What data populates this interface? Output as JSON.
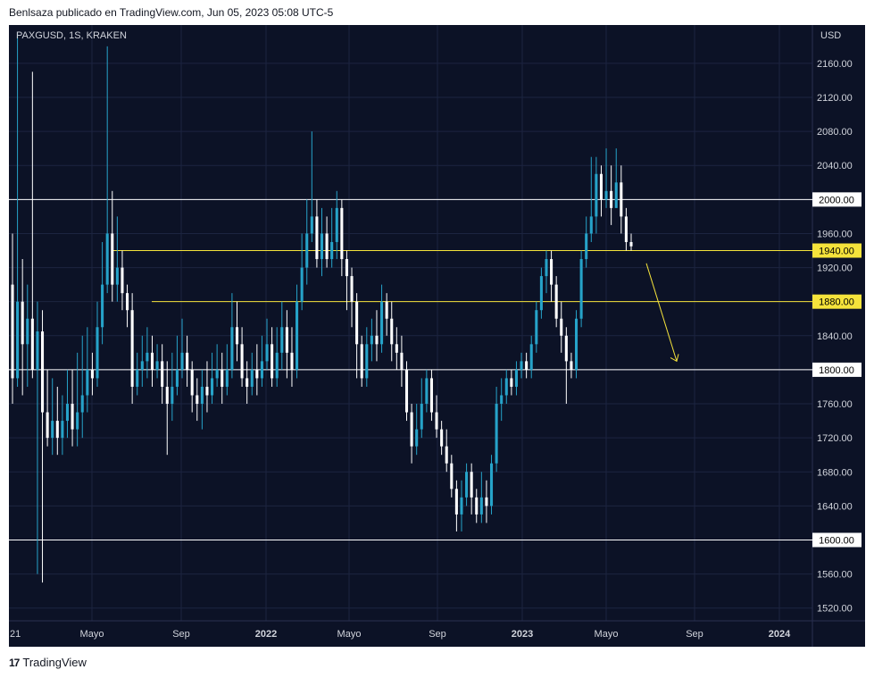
{
  "header": {
    "publisher_line": "Benlsaza publicado en TradingView.com, Jun 05, 2023 05:08 UTC-5"
  },
  "footer": {
    "brand": "TradingView",
    "logo_glyph": "17"
  },
  "chart_data": {
    "type": "candlestick",
    "symbol_label": "PAXGUSD, 1S, KRAKEN",
    "currency": "USD",
    "y_ticks": [
      1520,
      1560,
      1600,
      1640,
      1680,
      1720,
      1760,
      1800,
      1840,
      1880,
      1920,
      1960,
      2000,
      2040,
      2080,
      2120,
      2160
    ],
    "x_labels": [
      "21",
      "Mayo",
      "Sep",
      "2022",
      "Mayo",
      "Sep",
      "2023",
      "Mayo",
      "Sep",
      "2024"
    ],
    "ylim": [
      1505,
      2205
    ],
    "grid": true,
    "colors": {
      "background": "#0c1226",
      "up": "#26a3c9",
      "down": "#ffffff",
      "grid": "#1c2440",
      "text": "#d1d4dc",
      "yellow": "#f5e33b"
    },
    "levels": [
      {
        "price": 2000,
        "label": "2000.00",
        "color": "white"
      },
      {
        "price": 1940,
        "label": "1940.00",
        "color": "yellow"
      },
      {
        "price": 1880,
        "label": "1880.00",
        "color": "yellow"
      },
      {
        "price": 1800,
        "label": "1800.00",
        "color": "white"
      },
      {
        "price": 1600,
        "label": "1600.00",
        "color": "white"
      }
    ],
    "annotation": {
      "type": "arrow",
      "color": "yellow",
      "from_price": 1925,
      "to_price": 1810,
      "direction": "down"
    },
    "candles": [
      [
        1900,
        1790,
        1960,
        1760
      ],
      [
        1790,
        1880,
        2195,
        1780
      ],
      [
        1880,
        1830,
        1930,
        1770
      ],
      [
        1830,
        1860,
        1900,
        1780
      ],
      [
        1860,
        1800,
        2150,
        1790
      ],
      [
        1800,
        1845,
        1880,
        1560
      ],
      [
        1845,
        1750,
        1870,
        1550
      ],
      [
        1750,
        1720,
        1800,
        1710
      ],
      [
        1720,
        1740,
        1790,
        1700
      ],
      [
        1740,
        1720,
        1780,
        1700
      ],
      [
        1720,
        1740,
        1770,
        1700
      ],
      [
        1740,
        1760,
        1800,
        1720
      ],
      [
        1760,
        1730,
        1800,
        1710
      ],
      [
        1730,
        1750,
        1820,
        1710
      ],
      [
        1750,
        1770,
        1840,
        1720
      ],
      [
        1770,
        1800,
        1850,
        1750
      ],
      [
        1800,
        1790,
        1820,
        1770
      ],
      [
        1790,
        1850,
        1880,
        1780
      ],
      [
        1850,
        1900,
        1950,
        1830
      ],
      [
        1900,
        1960,
        2180,
        1890
      ],
      [
        1960,
        1900,
        2010,
        1880
      ],
      [
        1900,
        1920,
        1980,
        1880
      ],
      [
        1920,
        1890,
        1940,
        1870
      ],
      [
        1890,
        1870,
        1900,
        1850
      ],
      [
        1870,
        1780,
        1890,
        1760
      ],
      [
        1780,
        1800,
        1820,
        1770
      ],
      [
        1800,
        1810,
        1840,
        1780
      ],
      [
        1810,
        1820,
        1850,
        1790
      ],
      [
        1820,
        1800,
        1840,
        1780
      ],
      [
        1800,
        1810,
        1830,
        1790
      ],
      [
        1810,
        1780,
        1830,
        1760
      ],
      [
        1780,
        1760,
        1810,
        1700
      ],
      [
        1760,
        1780,
        1820,
        1740
      ],
      [
        1780,
        1800,
        1840,
        1770
      ],
      [
        1800,
        1820,
        1860,
        1790
      ],
      [
        1820,
        1800,
        1840,
        1780
      ],
      [
        1800,
        1770,
        1810,
        1750
      ],
      [
        1770,
        1760,
        1790,
        1740
      ],
      [
        1760,
        1780,
        1800,
        1730
      ],
      [
        1780,
        1770,
        1810,
        1750
      ],
      [
        1770,
        1790,
        1820,
        1760
      ],
      [
        1790,
        1800,
        1830,
        1780
      ],
      [
        1800,
        1780,
        1820,
        1760
      ],
      [
        1780,
        1800,
        1830,
        1770
      ],
      [
        1800,
        1850,
        1890,
        1790
      ],
      [
        1850,
        1830,
        1880,
        1810
      ],
      [
        1830,
        1790,
        1850,
        1780
      ],
      [
        1790,
        1780,
        1810,
        1760
      ],
      [
        1780,
        1800,
        1820,
        1770
      ],
      [
        1800,
        1790,
        1830,
        1770
      ],
      [
        1790,
        1810,
        1840,
        1780
      ],
      [
        1810,
        1830,
        1860,
        1800
      ],
      [
        1830,
        1790,
        1850,
        1780
      ],
      [
        1790,
        1820,
        1850,
        1780
      ],
      [
        1820,
        1850,
        1880,
        1800
      ],
      [
        1850,
        1820,
        1870,
        1790
      ],
      [
        1820,
        1800,
        1850,
        1780
      ],
      [
        1800,
        1880,
        1900,
        1790
      ],
      [
        1880,
        1920,
        1960,
        1870
      ],
      [
        1920,
        1960,
        2000,
        1900
      ],
      [
        1960,
        1980,
        2080,
        1950
      ],
      [
        1980,
        1930,
        2000,
        1920
      ],
      [
        1930,
        1960,
        1990,
        1910
      ],
      [
        1960,
        1930,
        1980,
        1920
      ],
      [
        1930,
        1950,
        1990,
        1920
      ],
      [
        1950,
        1990,
        2010,
        1930
      ],
      [
        1990,
        1930,
        2000,
        1910
      ],
      [
        1930,
        1910,
        1940,
        1870
      ],
      [
        1910,
        1880,
        1920,
        1850
      ],
      [
        1880,
        1830,
        1890,
        1790
      ],
      [
        1830,
        1790,
        1840,
        1780
      ],
      [
        1790,
        1830,
        1850,
        1780
      ],
      [
        1830,
        1840,
        1860,
        1810
      ],
      [
        1840,
        1830,
        1870,
        1810
      ],
      [
        1830,
        1880,
        1900,
        1820
      ],
      [
        1880,
        1860,
        1890,
        1840
      ],
      [
        1860,
        1830,
        1880,
        1810
      ],
      [
        1830,
        1820,
        1850,
        1800
      ],
      [
        1820,
        1800,
        1840,
        1780
      ],
      [
        1800,
        1750,
        1810,
        1740
      ],
      [
        1750,
        1710,
        1760,
        1690
      ],
      [
        1710,
        1730,
        1760,
        1700
      ],
      [
        1730,
        1760,
        1790,
        1720
      ],
      [
        1760,
        1790,
        1800,
        1750
      ],
      [
        1790,
        1750,
        1800,
        1740
      ],
      [
        1750,
        1730,
        1770,
        1720
      ],
      [
        1730,
        1710,
        1740,
        1700
      ],
      [
        1710,
        1690,
        1730,
        1680
      ],
      [
        1690,
        1660,
        1700,
        1650
      ],
      [
        1660,
        1630,
        1670,
        1610
      ],
      [
        1630,
        1650,
        1670,
        1610
      ],
      [
        1650,
        1680,
        1690,
        1640
      ],
      [
        1680,
        1650,
        1690,
        1630
      ],
      [
        1650,
        1630,
        1660,
        1620
      ],
      [
        1630,
        1650,
        1680,
        1620
      ],
      [
        1650,
        1640,
        1670,
        1620
      ],
      [
        1640,
        1690,
        1700,
        1630
      ],
      [
        1690,
        1760,
        1780,
        1680
      ],
      [
        1760,
        1770,
        1790,
        1740
      ],
      [
        1770,
        1790,
        1800,
        1760
      ],
      [
        1790,
        1780,
        1800,
        1770
      ],
      [
        1780,
        1800,
        1810,
        1770
      ],
      [
        1800,
        1810,
        1820,
        1790
      ],
      [
        1810,
        1800,
        1820,
        1790
      ],
      [
        1800,
        1830,
        1840,
        1790
      ],
      [
        1830,
        1870,
        1880,
        1820
      ],
      [
        1870,
        1910,
        1920,
        1860
      ],
      [
        1910,
        1930,
        1940,
        1890
      ],
      [
        1930,
        1900,
        1940,
        1880
      ],
      [
        1900,
        1860,
        1910,
        1850
      ],
      [
        1860,
        1840,
        1880,
        1820
      ],
      [
        1840,
        1810,
        1850,
        1760
      ],
      [
        1810,
        1800,
        1820,
        1790
      ],
      [
        1800,
        1860,
        1870,
        1790
      ],
      [
        1860,
        1930,
        1940,
        1850
      ],
      [
        1930,
        1960,
        1980,
        1920
      ],
      [
        1960,
        1980,
        2050,
        1950
      ],
      [
        1980,
        2030,
        2050,
        1960
      ],
      [
        2030,
        2000,
        2040,
        1980
      ],
      [
        2000,
        2010,
        2060,
        1990
      ],
      [
        2010,
        1990,
        2040,
        1970
      ],
      [
        1990,
        2020,
        2060,
        1990
      ],
      [
        2020,
        1980,
        2040,
        1960
      ],
      [
        1980,
        1950,
        1990,
        1940
      ],
      [
        1950,
        1945,
        1960,
        1940
      ]
    ]
  }
}
